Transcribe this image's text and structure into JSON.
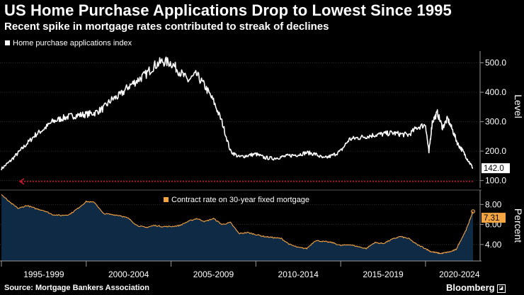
{
  "header": {
    "title": "US Home Purchase Applications Drop to Lowest Since 1995",
    "subtitle": "Recent spike in mortgage rates contributed to streak of declines"
  },
  "footer": {
    "source": "Source: Mortgage Bankers Association",
    "brand": "Bloomberg"
  },
  "colors": {
    "background": "#000000",
    "index_line": "#ffffff",
    "reference_line": "#d01a2c",
    "rate_line": "#f5a442",
    "rate_fill": "#0e2a44",
    "grid": "#3b3b3b",
    "axis_text": "#ffffff"
  },
  "chart_data": [
    {
      "type": "line",
      "legend": "Home purchase applications index",
      "ylabel": "Level",
      "ylim": [
        75,
        540
      ],
      "yticks": [
        100,
        200,
        300,
        400,
        500
      ],
      "ytick_labels": [
        "100.0",
        "200.0",
        "300.0",
        "400.0",
        "500.0"
      ],
      "xlim": [
        1995.0,
        2022.8
      ],
      "x_tick_positions": [
        1997.5,
        2002.5,
        2007.5,
        2012.5,
        2017.5,
        2022.0
      ],
      "x_tick_labels": [
        "1995-1999",
        "2000-2004",
        "2005-2009",
        "2010-2014",
        "2015-2019",
        "2020-2024"
      ],
      "last_value_label": "142.0",
      "reference_line": {
        "value": 97,
        "style": "dotted"
      },
      "series": [
        {
          "name": "Home purchase applications index",
          "x": [
            1995.0,
            1995.5,
            1996.0,
            1996.5,
            1997.0,
            1997.5,
            1998.0,
            1998.5,
            1999.0,
            1999.5,
            2000.0,
            2000.5,
            2001.0,
            2001.5,
            2002.0,
            2002.5,
            2003.0,
            2003.5,
            2004.0,
            2004.5,
            2005.0,
            2005.5,
            2006.0,
            2006.5,
            2007.0,
            2007.5,
            2008.0,
            2008.5,
            2009.0,
            2009.5,
            2010.0,
            2010.5,
            2011.0,
            2011.5,
            2012.0,
            2012.5,
            2013.0,
            2013.5,
            2014.0,
            2014.5,
            2015.0,
            2015.5,
            2016.0,
            2016.5,
            2017.0,
            2017.5,
            2018.0,
            2018.5,
            2019.0,
            2019.5,
            2020.0,
            2020.2,
            2020.4,
            2020.7,
            2021.0,
            2021.3,
            2021.6,
            2021.9,
            2022.2,
            2022.5,
            2022.8
          ],
          "values": [
            140,
            165,
            195,
            225,
            255,
            275,
            300,
            310,
            318,
            322,
            325,
            330,
            345,
            375,
            390,
            420,
            440,
            460,
            490,
            505,
            500,
            470,
            440,
            460,
            420,
            370,
            300,
            200,
            180,
            185,
            190,
            178,
            175,
            180,
            185,
            188,
            195,
            190,
            175,
            185,
            200,
            240,
            245,
            250,
            255,
            258,
            262,
            258,
            255,
            280,
            290,
            195,
            300,
            330,
            280,
            310,
            270,
            225,
            200,
            170,
            142
          ]
        }
      ]
    },
    {
      "type": "area",
      "legend": "Contract rate on 30-year fixed mortgage",
      "ylabel": "Percent",
      "ylim": [
        2.5,
        9.3
      ],
      "yticks": [
        4,
        6,
        8
      ],
      "ytick_labels": [
        "4.00",
        "6.00",
        "8.00"
      ],
      "xlim": [
        1995.0,
        2022.8
      ],
      "last_value_label": "7.31",
      "series": [
        {
          "name": "Contract rate on 30-year fixed mortgage",
          "x": [
            1995.0,
            1995.5,
            1996.0,
            1996.5,
            1997.0,
            1997.5,
            1998.0,
            1998.5,
            1999.0,
            1999.5,
            2000.0,
            2000.5,
            2001.0,
            2001.5,
            2002.0,
            2002.5,
            2003.0,
            2003.5,
            2004.0,
            2004.5,
            2005.0,
            2005.5,
            2006.0,
            2006.5,
            2007.0,
            2007.5,
            2008.0,
            2008.5,
            2009.0,
            2009.5,
            2010.0,
            2010.5,
            2011.0,
            2011.5,
            2012.0,
            2012.5,
            2013.0,
            2013.5,
            2014.0,
            2014.5,
            2015.0,
            2015.5,
            2016.0,
            2016.5,
            2017.0,
            2017.5,
            2018.0,
            2018.5,
            2019.0,
            2019.5,
            2020.0,
            2020.3,
            2020.6,
            2020.9,
            2021.2,
            2021.5,
            2021.8,
            2022.1,
            2022.4,
            2022.6,
            2022.8
          ],
          "values": [
            9.0,
            8.2,
            7.6,
            7.9,
            7.6,
            7.4,
            7.0,
            6.9,
            7.0,
            7.6,
            8.3,
            8.2,
            7.1,
            7.0,
            6.9,
            6.6,
            5.9,
            5.7,
            5.9,
            5.8,
            5.8,
            5.9,
            6.3,
            6.6,
            6.3,
            6.6,
            6.0,
            6.2,
            5.1,
            5.2,
            5.0,
            4.8,
            4.7,
            4.6,
            4.0,
            3.7,
            3.6,
            4.4,
            4.3,
            4.2,
            3.9,
            4.0,
            3.8,
            3.6,
            4.2,
            4.1,
            4.5,
            4.8,
            4.6,
            4.0,
            3.6,
            3.3,
            3.2,
            3.1,
            3.2,
            3.3,
            3.5,
            4.5,
            5.5,
            6.4,
            7.31
          ]
        }
      ]
    }
  ]
}
